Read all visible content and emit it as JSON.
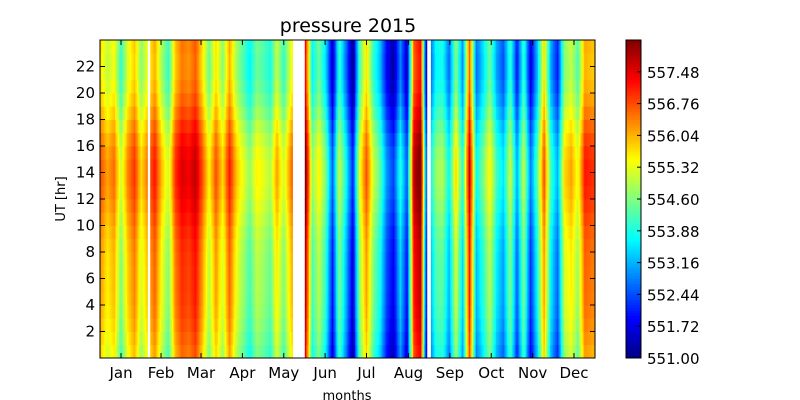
{
  "chart_data": {
    "type": "heatmap",
    "title": "pressure 2015",
    "xlabel": "months",
    "ylabel": "UT [hr]",
    "x_tick_labels": [
      "Jan",
      "Feb",
      "Mar",
      "Apr",
      "May",
      "Jun",
      "Jul",
      "Aug",
      "Sep",
      "Oct",
      "Nov",
      "Dec"
    ],
    "x_range": [
      "2015-01-01",
      "2015-12-31"
    ],
    "y_ticks": [
      2,
      4,
      6,
      8,
      10,
      12,
      14,
      16,
      18,
      20,
      22
    ],
    "ylim": [
      0,
      24
    ],
    "colorbar": {
      "colormap": "jet",
      "range": [
        551.0,
        558.2
      ],
      "ticks": [
        "557.48",
        "556.76",
        "556.04",
        "555.32",
        "554.60",
        "553.88",
        "553.16",
        "552.44",
        "551.72",
        "551.00"
      ],
      "tick_values": [
        557.48,
        556.76,
        556.04,
        555.32,
        554.6,
        553.88,
        553.16,
        552.44,
        551.72,
        551.0
      ]
    },
    "missing_date_ranges": [
      [
        "2015-05-23",
        "2015-05-31"
      ],
      [
        "2015-02-05",
        "2015-02-06"
      ],
      [
        "2015-08-30",
        "2015-09-01"
      ]
    ],
    "daily_mean_pressure_estimate": [
      [
        "2015-01-01",
        556.2
      ],
      [
        "2015-01-06",
        555.6
      ],
      [
        "2015-01-11",
        556.0
      ],
      [
        "2015-01-16",
        554.6
      ],
      [
        "2015-01-21",
        555.8
      ],
      [
        "2015-01-26",
        556.4
      ],
      [
        "2015-01-31",
        555.2
      ],
      [
        "2015-02-05",
        556.0
      ],
      [
        "2015-02-10",
        556.6
      ],
      [
        "2015-02-15",
        555.4
      ],
      [
        "2015-02-20",
        554.6
      ],
      [
        "2015-02-25",
        556.4
      ],
      [
        "2015-03-02",
        557.0
      ],
      [
        "2015-03-07",
        556.8
      ],
      [
        "2015-03-12",
        557.2
      ],
      [
        "2015-03-17",
        556.2
      ],
      [
        "2015-03-22",
        555.0
      ],
      [
        "2015-03-27",
        556.2
      ],
      [
        "2015-04-01",
        555.2
      ],
      [
        "2015-04-06",
        556.6
      ],
      [
        "2015-04-11",
        555.4
      ],
      [
        "2015-04-16",
        554.8
      ],
      [
        "2015-04-21",
        554.2
      ],
      [
        "2015-04-26",
        555.0
      ],
      [
        "2015-05-01",
        554.8
      ],
      [
        "2015-05-06",
        554.4
      ],
      [
        "2015-05-11",
        555.6
      ],
      [
        "2015-05-16",
        554.6
      ],
      [
        "2015-05-21",
        555.8
      ],
      [
        "2015-06-01",
        557.8
      ],
      [
        "2015-06-06",
        554.2
      ],
      [
        "2015-06-11",
        555.0
      ],
      [
        "2015-06-16",
        554.0
      ],
      [
        "2015-06-21",
        552.0
      ],
      [
        "2015-06-26",
        554.6
      ],
      [
        "2015-07-01",
        553.2
      ],
      [
        "2015-07-06",
        551.6
      ],
      [
        "2015-07-11",
        554.8
      ],
      [
        "2015-07-16",
        556.2
      ],
      [
        "2015-07-21",
        554.6
      ],
      [
        "2015-07-26",
        553.8
      ],
      [
        "2015-07-31",
        552.4
      ],
      [
        "2015-08-05",
        551.8
      ],
      [
        "2015-08-10",
        553.4
      ],
      [
        "2015-08-15",
        552.0
      ],
      [
        "2015-08-20",
        557.2
      ],
      [
        "2015-08-25",
        557.8
      ],
      [
        "2015-08-29",
        552.2
      ],
      [
        "2015-09-05",
        554.2
      ],
      [
        "2015-09-10",
        554.4
      ],
      [
        "2015-09-15",
        553.2
      ],
      [
        "2015-09-20",
        555.2
      ],
      [
        "2015-09-25",
        553.4
      ],
      [
        "2015-09-30",
        557.2
      ],
      [
        "2015-10-05",
        553.2
      ],
      [
        "2015-10-10",
        554.0
      ],
      [
        "2015-10-15",
        555.0
      ],
      [
        "2015-10-20",
        553.6
      ],
      [
        "2015-10-25",
        553.0
      ],
      [
        "2015-10-30",
        554.6
      ],
      [
        "2015-11-04",
        552.6
      ],
      [
        "2015-11-09",
        554.6
      ],
      [
        "2015-11-14",
        552.2
      ],
      [
        "2015-11-19",
        553.8
      ],
      [
        "2015-11-24",
        556.2
      ],
      [
        "2015-11-29",
        553.6
      ],
      [
        "2015-12-04",
        552.6
      ],
      [
        "2015-12-09",
        555.2
      ],
      [
        "2015-12-14",
        555.6
      ],
      [
        "2015-12-19",
        554.8
      ],
      [
        "2015-12-24",
        556.6
      ],
      [
        "2015-12-31",
        556.4
      ]
    ]
  }
}
